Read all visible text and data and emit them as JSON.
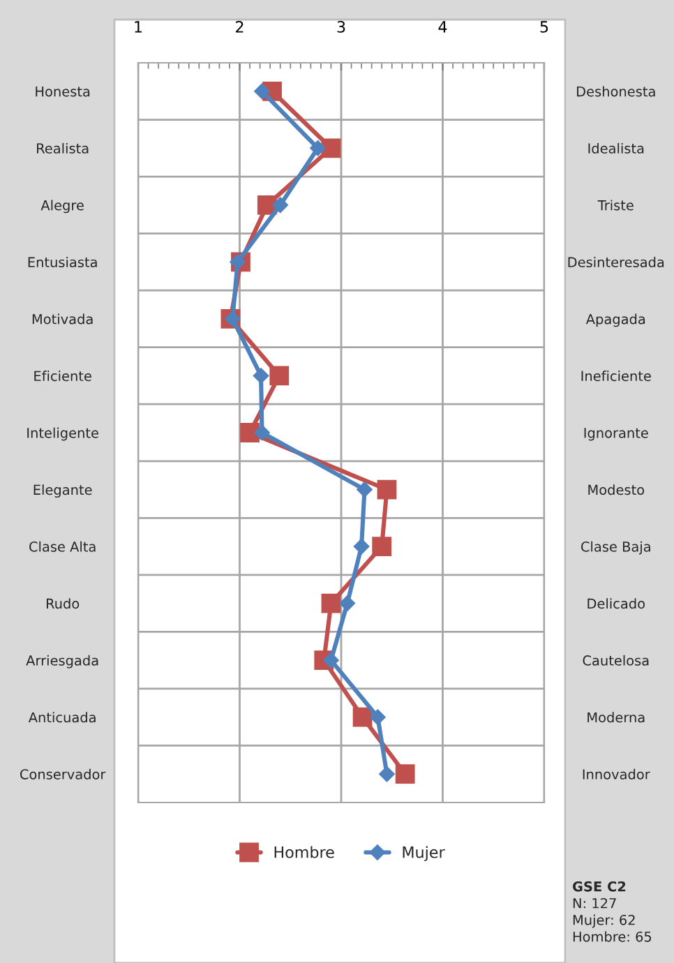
{
  "chart_data": {
    "type": "line",
    "orientation": "horizontal",
    "categories": [
      "Honesta",
      "Realista",
      "Alegre",
      "Entusiasta",
      "Motivada",
      "Eficiente",
      "Inteligente",
      "Elegante",
      "Clase Alta",
      "Rudo",
      "Arriesgada",
      "Anticuada",
      "Conservador"
    ],
    "y2_categories": [
      "Deshonesta",
      "Idealista",
      "Triste",
      "Desinteresada",
      "Apagada",
      "Ineficiente",
      "Ignorante",
      "Modesto",
      "Clase Baja",
      "Delicado",
      "Cautelosa",
      "Moderna",
      "Innovador"
    ],
    "series": [
      {
        "name": "Hombre",
        "color": "#c0504d",
        "marker": "square",
        "values": [
          2.32,
          2.9,
          2.27,
          2.01,
          1.91,
          2.39,
          2.1,
          3.45,
          3.4,
          2.9,
          2.83,
          3.21,
          3.63
        ]
      },
      {
        "name": "Mujer",
        "color": "#4f81bd",
        "marker": "diamond",
        "values": [
          2.22,
          2.77,
          2.4,
          1.98,
          1.93,
          2.21,
          2.22,
          3.23,
          3.2,
          3.06,
          2.9,
          3.36,
          3.45
        ]
      }
    ],
    "xlim": [
      1,
      5
    ],
    "xticks": [
      1,
      2,
      3,
      4,
      5
    ],
    "grid": true,
    "legend": "bottom",
    "line_style": "solid",
    "annotations": [
      "GSE C2",
      "N: 127",
      "Mujer: 62",
      "Hombre: 65"
    ]
  }
}
